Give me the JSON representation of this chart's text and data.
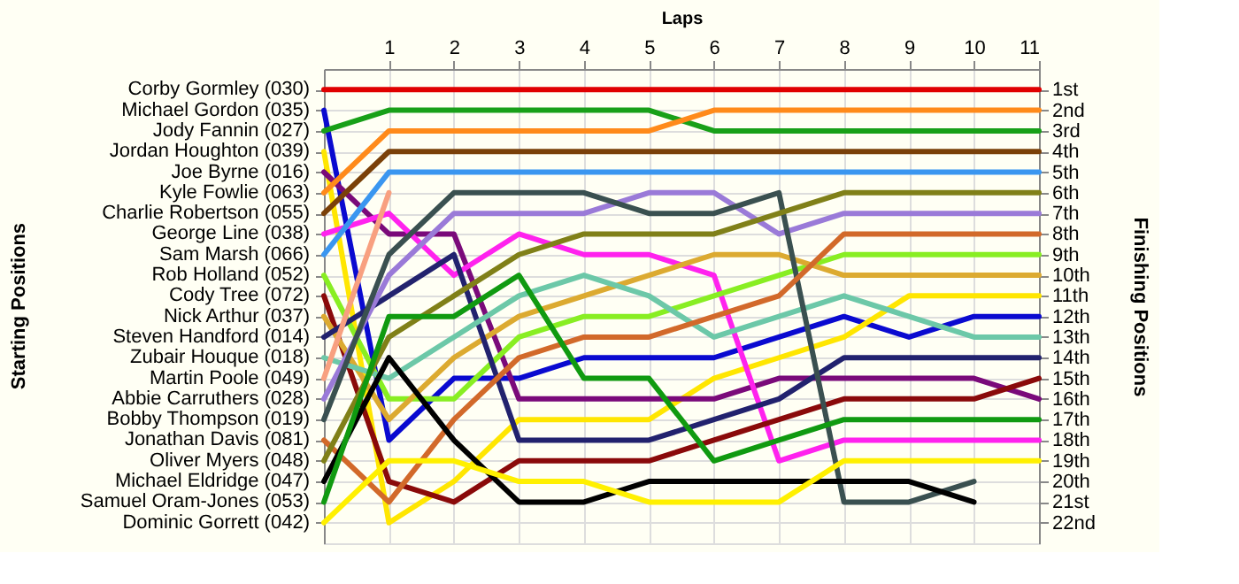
{
  "chart_data": {
    "type": "line",
    "xlabel": "Laps",
    "annotations": [
      "Starting Positions"
    ],
    "y2label": "Finishing Positions",
    "x": [
      0,
      1,
      2,
      3,
      4,
      5,
      6,
      7,
      8,
      9,
      10,
      11
    ],
    "xlim": [
      0,
      11
    ],
    "xticks": [
      1,
      2,
      3,
      4,
      5,
      6,
      7,
      8,
      9,
      10,
      11
    ],
    "y2lim": [
      23,
      0
    ],
    "y2ticks": [
      {
        "value": 1,
        "label": "1st"
      },
      {
        "value": 2,
        "label": "2nd"
      },
      {
        "value": 3,
        "label": "3rd"
      },
      {
        "value": 4,
        "label": "4th"
      },
      {
        "value": 5,
        "label": "5th"
      },
      {
        "value": 6,
        "label": "6th"
      },
      {
        "value": 7,
        "label": "7th"
      },
      {
        "value": 8,
        "label": "8th"
      },
      {
        "value": 9,
        "label": "9th"
      },
      {
        "value": 10,
        "label": "10th"
      },
      {
        "value": 11,
        "label": "11th"
      },
      {
        "value": 12,
        "label": "12th"
      },
      {
        "value": 13,
        "label": "13th"
      },
      {
        "value": 14,
        "label": "14th"
      },
      {
        "value": 15,
        "label": "15th"
      },
      {
        "value": 16,
        "label": "16th"
      },
      {
        "value": 17,
        "label": "17th"
      },
      {
        "value": 18,
        "label": "18th"
      },
      {
        "value": 19,
        "label": "19th"
      },
      {
        "value": 20,
        "label": "20th"
      },
      {
        "value": 21,
        "label": "21st"
      },
      {
        "value": 22,
        "label": "22nd"
      }
    ],
    "grid": true,
    "legend": false,
    "marker": "none",
    "line_style": "solid",
    "series": [
      {
        "name": "Corby Gormley (030)",
        "axis": "y2",
        "color": "#e00000",
        "values": [
          1,
          1,
          1,
          1,
          1,
          1,
          1,
          1,
          1,
          1,
          1,
          1
        ]
      },
      {
        "name": "Michael Gordon (035)",
        "axis": "y2",
        "color": "#0a0ad0",
        "values": [
          2,
          18,
          15,
          15,
          14,
          14,
          14,
          13,
          12,
          13,
          12,
          12
        ]
      },
      {
        "name": "Jody Fannin (027)",
        "axis": "y2",
        "color": "#18a018",
        "values": [
          3,
          2,
          2,
          2,
          2,
          2,
          3,
          3,
          3,
          3,
          3,
          3
        ]
      },
      {
        "name": "Jordan Houghton (039)",
        "axis": "y2",
        "color": "#ffe600",
        "values": [
          4,
          22,
          20,
          17,
          17,
          17,
          15,
          14,
          13,
          11,
          11,
          11
        ]
      },
      {
        "name": "Joe Byrne (016)",
        "axis": "y2",
        "color": "#7a0a7a",
        "values": [
          5,
          8,
          8,
          16,
          16,
          16,
          16,
          15,
          15,
          15,
          15,
          16
        ]
      },
      {
        "name": "Kyle Fowlie (063)",
        "axis": "y2",
        "color": "#ff8a1a",
        "values": [
          6,
          3,
          3,
          3,
          3,
          3,
          2,
          2,
          2,
          2,
          2,
          2
        ]
      },
      {
        "name": "Charlie Robertson (055)",
        "axis": "y2",
        "color": "#7a4008",
        "values": [
          7,
          4,
          4,
          4,
          4,
          4,
          4,
          4,
          4,
          4,
          4,
          4
        ]
      },
      {
        "name": "George Line (038)",
        "axis": "y2",
        "color": "#ff22ee",
        "values": [
          8,
          7,
          10,
          8,
          9,
          9,
          10,
          19,
          18,
          18,
          18,
          18
        ]
      },
      {
        "name": "Sam Marsh (066)",
        "axis": "y2",
        "color": "#3a96f0",
        "values": [
          9,
          5,
          5,
          5,
          5,
          5,
          5,
          5,
          5,
          5,
          5,
          5
        ]
      },
      {
        "name": "Rob Holland (052)",
        "axis": "y2",
        "color": "#88ee22",
        "values": [
          10,
          16,
          16,
          13,
          12,
          12,
          11,
          10,
          9,
          9,
          9,
          9
        ]
      },
      {
        "name": "Cody Tree (072)",
        "axis": "y2",
        "color": "#8a0a0a",
        "values": [
          11,
          20,
          21,
          19,
          19,
          19,
          18,
          17,
          16,
          16,
          16,
          15
        ]
      },
      {
        "name": "Nick Arthur (037)",
        "axis": "y2",
        "color": "#dcaa30",
        "values": [
          12,
          17,
          14,
          12,
          11,
          10,
          9,
          9,
          10,
          10,
          10,
          10
        ]
      },
      {
        "name": "Steven Handford (014)",
        "axis": "y2",
        "color": "#22226e",
        "values": [
          13,
          11,
          9,
          18,
          18,
          18,
          17,
          16,
          14,
          14,
          14,
          14
        ]
      },
      {
        "name": "Zubair Houque (018)",
        "axis": "y2",
        "color": "#6cc8a8",
        "values": [
          14,
          15,
          13,
          11,
          10,
          11,
          13,
          12,
          11,
          12,
          13,
          13
        ]
      },
      {
        "name": "Martin Poole (049)",
        "axis": "y2",
        "color": "#f8a080",
        "values": [
          15,
          6,
          null,
          null,
          null,
          null,
          null,
          null,
          null,
          null,
          null,
          null
        ]
      },
      {
        "name": "Abbie Carruthers (028)",
        "axis": "y2",
        "color": "#9a7ad8",
        "values": [
          16,
          10,
          7,
          7,
          7,
          6,
          6,
          8,
          7,
          7,
          7,
          7
        ]
      },
      {
        "name": "Bobby Thompson (019)",
        "axis": "y2",
        "color": "#3a5050",
        "values": [
          17,
          9,
          6,
          6,
          6,
          7,
          7,
          6,
          21,
          21,
          20,
          null
        ]
      },
      {
        "name": "Jonathan Davis (081)",
        "axis": "y2",
        "color": "#d2692a",
        "values": [
          18,
          21,
          17,
          14,
          13,
          13,
          12,
          11,
          8,
          8,
          8,
          8
        ]
      },
      {
        "name": "Oliver Myers (048)",
        "axis": "y2",
        "color": "#808018",
        "values": [
          19,
          13,
          11,
          9,
          8,
          8,
          8,
          7,
          6,
          6,
          6,
          6
        ]
      },
      {
        "name": "Michael Eldridge (047)",
        "axis": "y2",
        "color": "#000000",
        "values": [
          20,
          14,
          18,
          21,
          21,
          20,
          20,
          20,
          20,
          20,
          21,
          null
        ]
      },
      {
        "name": "Samuel Oram-Jones (053)",
        "axis": "y2",
        "color": "#109a10",
        "values": [
          21,
          12,
          12,
          10,
          15,
          15,
          19,
          18,
          17,
          17,
          17,
          17
        ]
      },
      {
        "name": "Dominic Gorrett (042)",
        "axis": "y2",
        "color": "#fff000",
        "values": [
          22,
          19,
          19,
          20,
          20,
          21,
          21,
          21,
          19,
          19,
          19,
          19
        ]
      }
    ]
  }
}
